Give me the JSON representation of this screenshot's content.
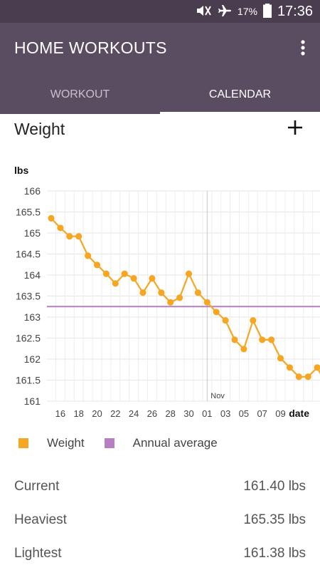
{
  "status_bar": {
    "battery": "17%",
    "time": "17:36"
  },
  "app": {
    "title": "HOME WORKOUTS"
  },
  "tabs": [
    {
      "label": "WORKOUT",
      "active": false
    },
    {
      "label": "CALENDAR",
      "active": true
    }
  ],
  "section": {
    "title": "Weight"
  },
  "chart_data": {
    "type": "line",
    "ylabel": "lbs",
    "xlabel": "date",
    "ylim": [
      161,
      166
    ],
    "yticks": [
      "161",
      "161.5",
      "162",
      "162.5",
      "163",
      "163.5",
      "164",
      "164.5",
      "165",
      "165.5",
      "166"
    ],
    "xticks": [
      "16",
      "18",
      "20",
      "22",
      "24",
      "26",
      "28",
      "30",
      "01",
      "03",
      "05",
      "07",
      "09"
    ],
    "month_marker": "Nov",
    "series": [
      {
        "name": "Weight",
        "color": "#f5a623",
        "points": [
          [
            "Oct 15",
            165.35
          ],
          [
            "Oct 16",
            165.12
          ],
          [
            "Oct 17",
            164.92
          ],
          [
            "Oct 18",
            164.92
          ],
          [
            "Oct 19",
            164.46
          ],
          [
            "Oct 20",
            164.24
          ],
          [
            "Oct 21",
            164.03
          ],
          [
            "Oct 22",
            163.8
          ],
          [
            "Oct 23",
            164.03
          ],
          [
            "Oct 24",
            163.92
          ],
          [
            "Oct 25",
            163.58
          ],
          [
            "Oct 26",
            163.92
          ],
          [
            "Oct 27",
            163.58
          ],
          [
            "Oct 28",
            163.35
          ],
          [
            "Oct 29",
            163.46
          ],
          [
            "Oct 30",
            164.03
          ],
          [
            "Oct 31",
            163.58
          ],
          [
            "Nov 01",
            163.35
          ],
          [
            "Nov 02",
            163.12
          ],
          [
            "Nov 03",
            162.92
          ],
          [
            "Nov 04",
            162.46
          ],
          [
            "Nov 05",
            162.24
          ],
          [
            "Nov 06",
            162.92
          ],
          [
            "Nov 07",
            162.46
          ],
          [
            "Nov 08",
            162.46
          ],
          [
            "Nov 09",
            162.02
          ],
          [
            "Nov 10",
            161.8
          ],
          [
            "Nov 11",
            161.58
          ],
          [
            "Nov 12",
            161.58
          ],
          [
            "Nov 13",
            161.8
          ],
          [
            "Nov 14",
            161.4
          ]
        ]
      },
      {
        "name": "Annual average",
        "color": "#b67fc2",
        "value": 163.25
      }
    ],
    "grid": true,
    "legend_position": "bottom-left"
  },
  "legend": [
    {
      "label": "Weight",
      "color": "#f5a623"
    },
    {
      "label": "Annual average",
      "color": "#b67fc2"
    }
  ],
  "stats": [
    {
      "label": "Current",
      "value": "161.40 lbs"
    },
    {
      "label": "Heaviest",
      "value": "165.35 lbs"
    },
    {
      "label": "Lightest",
      "value": "161.38 lbs"
    }
  ],
  "icons": {
    "menu": "more-vert-icon",
    "add": "plus-icon",
    "silent": "mute-icon",
    "airplane": "airplane-icon",
    "battery": "battery-icon"
  }
}
